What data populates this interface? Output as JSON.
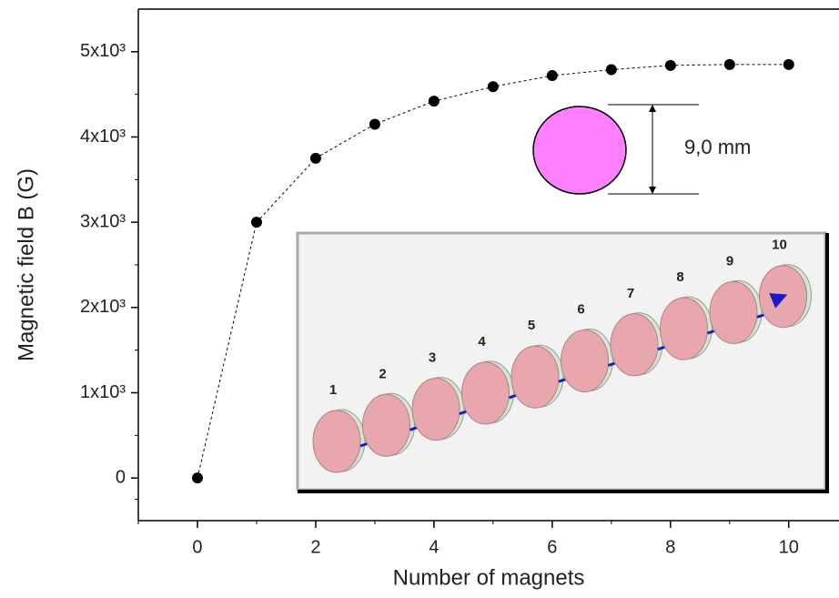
{
  "chart_data": {
    "type": "line",
    "x_label": "Number of magnets",
    "y_label": "Magnetic field B (G)",
    "x": [
      0,
      1,
      2,
      3,
      4,
      5,
      6,
      7,
      8,
      9,
      10
    ],
    "values": [
      0,
      3000,
      3750,
      4150,
      4420,
      4590,
      4720,
      4790,
      4840,
      4850,
      4850
    ],
    "color": "#000000",
    "xlim": [
      -1,
      10.85
    ],
    "ylim": [
      -500,
      5500
    ],
    "xticks": [
      0,
      2,
      4,
      6,
      8,
      10
    ],
    "yticks": [
      0,
      {
        "value": 1000,
        "label": "1x10³"
      },
      {
        "value": 2000,
        "label": "2x10³"
      },
      {
        "value": 3000,
        "label": "3x10³"
      },
      {
        "value": 4000,
        "label": "4x10³"
      },
      {
        "value": 5000,
        "label": "5x10³"
      }
    ],
    "annotations": {
      "diameter": "9,0 mm",
      "magnet_labels": [
        "1",
        "2",
        "3",
        "4",
        "5",
        "6",
        "7",
        "8",
        "9",
        "10"
      ]
    }
  }
}
